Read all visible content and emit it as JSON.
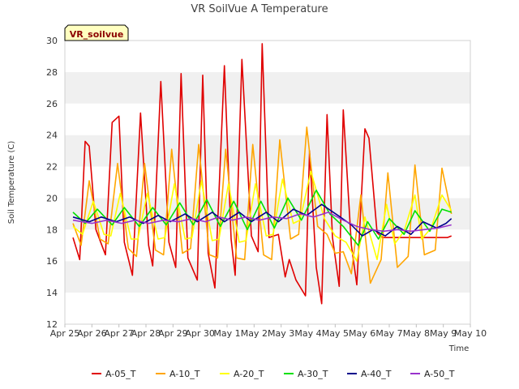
{
  "chart_data": {
    "type": "line",
    "title": "VR SoilVue A Temperature",
    "xlabel": "Time",
    "ylabel": "Soil Temperature (C)",
    "station_badge": "VR_soilvue",
    "ylim": [
      12,
      30
    ],
    "yticks": [
      12,
      14,
      16,
      18,
      20,
      22,
      24,
      26,
      28,
      30
    ],
    "xlim": [
      0,
      15
    ],
    "xticks": [
      {
        "day": 0,
        "label": "Apr 25"
      },
      {
        "day": 1,
        "label": "Apr 26"
      },
      {
        "day": 2,
        "label": "Apr 27"
      },
      {
        "day": 3,
        "label": "Apr 28"
      },
      {
        "day": 4,
        "label": "Apr 29"
      },
      {
        "day": 5,
        "label": "Apr 30"
      },
      {
        "day": 6,
        "label": "May 1"
      },
      {
        "day": 7,
        "label": "May 2"
      },
      {
        "day": 8,
        "label": "May 3"
      },
      {
        "day": 9,
        "label": "May 4"
      },
      {
        "day": 10,
        "label": "May 5"
      },
      {
        "day": 11,
        "label": "May 6"
      },
      {
        "day": 12,
        "label": "May 7"
      },
      {
        "day": 13,
        "label": "May 8"
      },
      {
        "day": 14,
        "label": "May 9"
      },
      {
        "day": 15,
        "label": "May 10"
      }
    ],
    "x_unit": "days since Apr 25 00:00",
    "series": [
      {
        "name": "A-05_T",
        "color": "#e00000",
        "x": [
          0.3,
          0.55,
          0.75,
          0.9,
          1.15,
          1.5,
          1.75,
          2.0,
          2.2,
          2.5,
          2.8,
          3.1,
          3.25,
          3.55,
          3.85,
          4.1,
          4.3,
          4.55,
          4.9,
          5.1,
          5.3,
          5.55,
          5.9,
          6.15,
          6.3,
          6.55,
          6.9,
          7.15,
          7.3,
          7.55,
          7.9,
          8.15,
          8.3,
          8.55,
          8.9,
          9.05,
          9.3,
          9.5,
          9.7,
          9.9,
          10.15,
          10.3,
          10.6,
          10.8,
          11.1,
          11.25,
          11.55,
          11.75,
          12.0,
          12.2,
          12.6,
          12.8,
          13.05,
          13.25,
          13.55,
          13.8,
          13.95,
          14.15,
          14.3
        ],
        "y": [
          17.5,
          16.1,
          23.6,
          23.3,
          18.0,
          16.4,
          24.8,
          25.2,
          17.2,
          15.1,
          25.4,
          17.0,
          15.7,
          27.4,
          17.2,
          15.6,
          27.9,
          16.2,
          14.8,
          27.8,
          16.5,
          14.3,
          28.4,
          17.4,
          15.1,
          28.8,
          17.6,
          16.6,
          29.8,
          17.5,
          17.7,
          15.0,
          16.1,
          14.8,
          13.8,
          23.0,
          15.6,
          13.3,
          25.3,
          17.5,
          14.4,
          25.6,
          17.0,
          14.5,
          24.4,
          23.8,
          17.8,
          17.5,
          17.5,
          17.5,
          17.5,
          17.5,
          17.5,
          17.5,
          17.5,
          17.5,
          17.5,
          17.5,
          17.6
        ]
      },
      {
        "name": "A-10_T",
        "color": "#ffa500",
        "x": [
          0.3,
          0.6,
          0.9,
          1.3,
          1.6,
          1.95,
          2.35,
          2.65,
          2.95,
          3.35,
          3.65,
          3.95,
          4.35,
          4.65,
          4.95,
          5.35,
          5.65,
          5.95,
          6.35,
          6.65,
          6.95,
          7.35,
          7.65,
          7.95,
          8.35,
          8.65,
          8.95,
          9.35,
          9.7,
          10.0,
          10.3,
          10.6,
          10.95,
          11.3,
          11.7,
          11.95,
          12.3,
          12.7,
          12.95,
          13.3,
          13.7,
          13.95,
          14.3
        ],
        "y": [
          18.4,
          17.0,
          21.1,
          17.4,
          17.1,
          22.2,
          16.8,
          16.3,
          22.2,
          16.7,
          16.4,
          23.1,
          16.5,
          16.8,
          23.4,
          16.4,
          16.2,
          23.1,
          16.2,
          16.1,
          23.4,
          16.4,
          16.1,
          23.7,
          17.4,
          17.7,
          24.5,
          18.2,
          17.7,
          16.5,
          16.6,
          15.2,
          20.2,
          14.6,
          16.1,
          21.6,
          15.6,
          16.3,
          22.1,
          16.4,
          16.7,
          21.9,
          19.0
        ]
      },
      {
        "name": "A-20_T",
        "color": "#ffff00",
        "x": [
          0.3,
          0.65,
          1.05,
          1.45,
          1.7,
          2.05,
          2.45,
          2.7,
          3.05,
          3.45,
          3.7,
          4.05,
          4.45,
          4.7,
          5.05,
          5.45,
          5.7,
          6.05,
          6.45,
          6.7,
          7.05,
          7.45,
          7.7,
          8.05,
          8.45,
          8.7,
          9.1,
          9.6,
          10.0,
          10.4,
          10.8,
          11.1,
          11.55,
          11.9,
          12.2,
          12.55,
          12.95,
          13.2,
          13.55,
          13.95,
          14.3
        ],
        "y": [
          18.2,
          17.7,
          19.8,
          17.7,
          17.6,
          20.3,
          17.4,
          17.4,
          20.3,
          17.4,
          17.5,
          20.9,
          17.4,
          17.5,
          21.1,
          17.3,
          17.4,
          20.9,
          17.2,
          17.3,
          20.9,
          17.6,
          17.7,
          21.2,
          18.4,
          18.6,
          21.7,
          18.7,
          17.6,
          17.2,
          16.0,
          18.8,
          16.1,
          19.6,
          17.1,
          17.9,
          20.2,
          17.4,
          18.1,
          20.2,
          19.2
        ]
      },
      {
        "name": "A-30_T",
        "color": "#00e000",
        "x": [
          0.3,
          0.75,
          1.2,
          1.75,
          2.2,
          2.75,
          3.25,
          3.75,
          4.25,
          4.75,
          5.25,
          5.75,
          6.25,
          6.75,
          7.25,
          7.75,
          8.25,
          8.75,
          9.3,
          9.8,
          10.3,
          10.85,
          11.2,
          11.6,
          12.0,
          12.55,
          12.95,
          13.5,
          13.95,
          14.3
        ],
        "y": [
          19.1,
          18.4,
          19.3,
          18.3,
          19.4,
          18.2,
          19.4,
          18.3,
          19.7,
          18.3,
          19.9,
          18.2,
          19.8,
          18.0,
          19.8,
          18.1,
          20.0,
          18.6,
          20.5,
          19.0,
          18.2,
          17.0,
          18.5,
          17.4,
          18.7,
          17.7,
          19.2,
          17.9,
          19.3,
          19.1
        ]
      },
      {
        "name": "A-40_T",
        "color": "#00008b",
        "x": [
          0.3,
          0.9,
          1.35,
          1.9,
          2.4,
          2.9,
          3.45,
          3.9,
          4.45,
          4.9,
          5.45,
          5.9,
          6.45,
          6.9,
          7.45,
          7.9,
          8.45,
          8.95,
          9.5,
          10.1,
          10.6,
          11.0,
          11.4,
          11.85,
          12.3,
          12.8,
          13.25,
          13.75,
          14.1,
          14.3
        ],
        "y": [
          18.8,
          18.5,
          18.8,
          18.5,
          18.8,
          18.4,
          18.9,
          18.5,
          19.0,
          18.5,
          19.1,
          18.5,
          19.1,
          18.5,
          19.1,
          18.5,
          19.3,
          18.9,
          19.6,
          18.9,
          18.3,
          17.6,
          18.0,
          17.6,
          18.2,
          17.7,
          18.5,
          18.1,
          18.4,
          18.7
        ]
      },
      {
        "name": "A-50_T",
        "color": "#9932cc",
        "x": [
          0.3,
          1.0,
          1.55,
          2.1,
          2.6,
          3.1,
          3.65,
          4.2,
          4.7,
          5.2,
          5.7,
          6.2,
          6.7,
          7.2,
          7.7,
          8.2,
          8.7,
          9.2,
          9.75,
          10.3,
          10.8,
          11.3,
          11.8,
          12.3,
          12.8,
          13.3,
          13.8,
          14.3
        ],
        "y": [
          18.6,
          18.4,
          18.6,
          18.4,
          18.6,
          18.4,
          18.6,
          18.5,
          18.7,
          18.5,
          18.8,
          18.6,
          18.8,
          18.6,
          18.8,
          18.7,
          19.0,
          18.8,
          19.1,
          18.6,
          18.2,
          18.0,
          17.9,
          18.0,
          17.9,
          18.0,
          18.1,
          18.3
        ]
      }
    ]
  }
}
